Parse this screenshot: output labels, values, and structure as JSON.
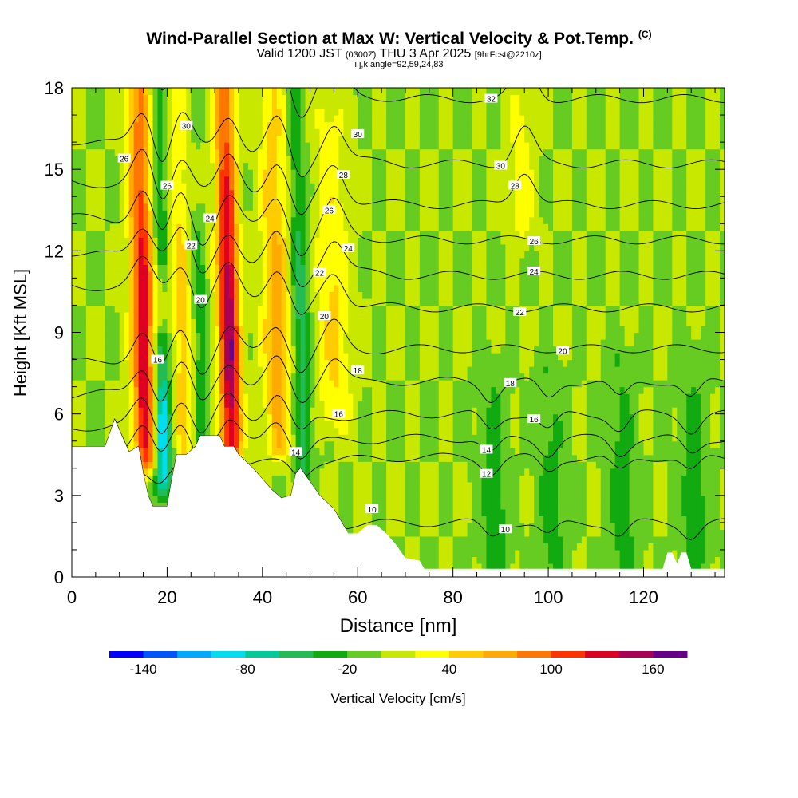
{
  "chart_data": {
    "type": "heatmap",
    "title": "Wind-Parallel Section at Max W: Vertical Velocity & Pot.Temp.",
    "title_mark": "(C)",
    "subtitle_main": "Valid 1200 JST",
    "subtitle_utc": "(0300Z)",
    "subtitle_date": "THU 3 Apr 2025",
    "subtitle_run": "[9hrFcst@2210z]",
    "subtitle2": "i,j,k,angle=92,59,24,83",
    "xlabel": "Distance [nm]",
    "ylabel": "Height [Kft MSL]",
    "xlim": [
      0,
      137
    ],
    "ylim": [
      0,
      18
    ],
    "x_ticks": [
      0,
      20,
      40,
      60,
      80,
      100,
      120
    ],
    "y_ticks": [
      0,
      3,
      6,
      9,
      12,
      15,
      18
    ],
    "colorbar": {
      "label": "Vertical Velocity [cm/s]",
      "min": -160,
      "max": 180,
      "step": 20,
      "ticks": [
        -140,
        -80,
        -20,
        40,
        100,
        160
      ],
      "colors": [
        "#0000ff",
        "#0055ff",
        "#00aaff",
        "#00ddee",
        "#00cc99",
        "#22bb55",
        "#11aa11",
        "#66cc22",
        "#c8e800",
        "#ffff00",
        "#ffcc00",
        "#ffaa00",
        "#ff7700",
        "#ff3300",
        "#dd0022",
        "#aa0055",
        "#660088"
      ]
    },
    "background_w": 0,
    "updraft_cores": [
      {
        "x": 15,
        "base": 4.5,
        "top": 18,
        "w": 140,
        "halfwidth": 2.4
      },
      {
        "x": 23,
        "base": 4.8,
        "top": 18,
        "w": 50,
        "halfwidth": 2.0
      },
      {
        "x": 33,
        "base": 5.0,
        "top": 18,
        "w": 160,
        "halfwidth": 2.2
      },
      {
        "x": 43,
        "base": 5.0,
        "top": 18,
        "w": 70,
        "halfwidth": 3.0
      },
      {
        "x": 55,
        "base": 6.0,
        "top": 17,
        "w": 45,
        "halfwidth": 3.5
      },
      {
        "x": 95,
        "base": 13.0,
        "top": 17.5,
        "w": 35,
        "halfwidth": 2.5
      }
    ],
    "downdraft_cores": [
      {
        "x": 18.5,
        "base": 3.5,
        "top": 8.5,
        "w": -110,
        "halfwidth": 1.8
      },
      {
        "x": 19,
        "base": 12,
        "top": 18,
        "w": -50,
        "halfwidth": 1.5
      },
      {
        "x": 27,
        "base": 5.0,
        "top": 13,
        "w": -35,
        "halfwidth": 1.5
      },
      {
        "x": 48,
        "base": 4.0,
        "top": 18,
        "w": -55,
        "halfwidth": 1.8
      },
      {
        "x": 88,
        "base": 0.5,
        "top": 7.5,
        "w": -30,
        "halfwidth": 3
      },
      {
        "x": 100,
        "base": 0.5,
        "top": 7.5,
        "w": -30,
        "halfwidth": 3
      },
      {
        "x": 115,
        "base": 0.5,
        "top": 8,
        "w": -30,
        "halfwidth": 3
      },
      {
        "x": 130,
        "base": 0.5,
        "top": 8,
        "w": -30,
        "halfwidth": 3
      }
    ],
    "terrain": [
      [
        0,
        4.8
      ],
      [
        7,
        4.8
      ],
      [
        9,
        5.8
      ],
      [
        12,
        4.6
      ],
      [
        14,
        4.8
      ],
      [
        15,
        3.8
      ],
      [
        16,
        3.0
      ],
      [
        17,
        2.6
      ],
      [
        20,
        2.6
      ],
      [
        21,
        3.6
      ],
      [
        22,
        4.5
      ],
      [
        24,
        4.5
      ],
      [
        26,
        4.8
      ],
      [
        27,
        5.2
      ],
      [
        31,
        5.2
      ],
      [
        32,
        4.8
      ],
      [
        34,
        4.8
      ],
      [
        35,
        4.5
      ],
      [
        38,
        4.0
      ],
      [
        42,
        3.2
      ],
      [
        44,
        2.9
      ],
      [
        46,
        3.0
      ],
      [
        47,
        3.8
      ],
      [
        48,
        4.0
      ],
      [
        50,
        3.5
      ],
      [
        52,
        3.0
      ],
      [
        55,
        2.5
      ],
      [
        58,
        1.6
      ],
      [
        60,
        1.6
      ],
      [
        62,
        1.9
      ],
      [
        64,
        1.9
      ],
      [
        66,
        1.6
      ],
      [
        68,
        1.2
      ],
      [
        70,
        0.7
      ],
      [
        73,
        0.6
      ],
      [
        74,
        0.3
      ],
      [
        82,
        0.3
      ],
      [
        124,
        0.3
      ],
      [
        125,
        0.9
      ],
      [
        126,
        0.9
      ],
      [
        127,
        0.5
      ],
      [
        128,
        0.9
      ],
      [
        129,
        0.9
      ],
      [
        130,
        0.3
      ],
      [
        137,
        0.3
      ]
    ],
    "theta_contours": [
      {
        "level": 10,
        "h": 2.0,
        "label": "10",
        "label_x": 91
      },
      {
        "level": 12,
        "h": 4.4,
        "label": "12",
        "label_x": 87
      },
      {
        "level": 14,
        "h": 5.1,
        "label": "14",
        "label_x": 87
      },
      {
        "level": 16,
        "h": 6.0,
        "label": "16",
        "label_x": 97
      },
      {
        "level": 18,
        "h": 7.2,
        "label": "18",
        "label_x": 92
      },
      {
        "level": 20,
        "h": 8.4,
        "label": "20",
        "label_x": 103
      },
      {
        "level": 22,
        "h": 9.9,
        "label": "22",
        "label_x": 94
      },
      {
        "level": 24,
        "h": 11.1,
        "label": "24",
        "label_x": 97
      },
      {
        "level": 26,
        "h": 12.4,
        "label": "26",
        "label_x": 97
      },
      {
        "level": 28,
        "h": 13.7,
        "label": "28",
        "label_x": 93
      },
      {
        "level": 30,
        "h": 15.2,
        "label": "30",
        "label_x": 90
      },
      {
        "level": 32,
        "h": 17.6,
        "label": "32",
        "label_x": 88
      }
    ],
    "left_contour_labels": [
      {
        "label": "10",
        "x": 63,
        "h": 2.5
      },
      {
        "label": "14",
        "x": 47,
        "h": 4.6
      },
      {
        "label": "16",
        "x": 56,
        "h": 6.0
      },
      {
        "label": "16",
        "x": 18,
        "h": 8.0
      },
      {
        "label": "18",
        "x": 60,
        "h": 7.6
      },
      {
        "label": "20",
        "x": 27,
        "h": 10.2
      },
      {
        "label": "20",
        "x": 53,
        "h": 9.6
      },
      {
        "label": "22",
        "x": 25,
        "h": 12.2
      },
      {
        "label": "22",
        "x": 52,
        "h": 11.2
      },
      {
        "label": "24",
        "x": 29,
        "h": 13.2
      },
      {
        "label": "24",
        "x": 58,
        "h": 12.1
      },
      {
        "label": "26",
        "x": 54,
        "h": 13.5
      },
      {
        "label": "26",
        "x": 20,
        "h": 14.4
      },
      {
        "label": "26",
        "x": 11,
        "h": 15.4
      },
      {
        "label": "28",
        "x": 57,
        "h": 14.8
      },
      {
        "label": "30",
        "x": 24,
        "h": 16.6
      },
      {
        "label": "30",
        "x": 60,
        "h": 16.3
      }
    ]
  }
}
